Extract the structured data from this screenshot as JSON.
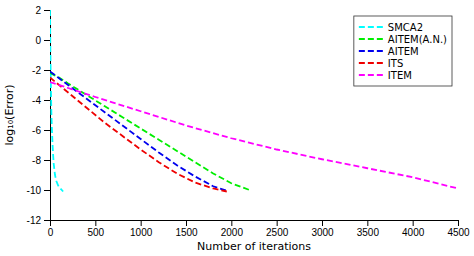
{
  "chart_data": {
    "type": "line",
    "xlabel": "Number of iterations",
    "ylabel": "log₁₀(Error)",
    "xlim": [
      0,
      4500
    ],
    "ylim": [
      -12,
      2
    ],
    "xticks": [
      0,
      500,
      1000,
      1500,
      2000,
      2500,
      3000,
      3500,
      4000,
      4500
    ],
    "yticks": [
      2,
      0,
      -2,
      -4,
      -6,
      -8,
      -10,
      -12
    ],
    "grid": false,
    "legend": "upper right",
    "line_style": "dashed",
    "series": [
      {
        "name": "SMCA2",
        "color": "#00ffff",
        "x": [
          0,
          1,
          2,
          3,
          5,
          7,
          10,
          15,
          20,
          30,
          40,
          55,
          70,
          90,
          115,
          145
        ],
        "values": [
          2.0,
          1.5,
          0.8,
          0.0,
          -1.0,
          -2.0,
          -3.2,
          -4.8,
          -5.8,
          -7.2,
          -8.2,
          -9.0,
          -9.4,
          -9.7,
          -9.9,
          -10.1
        ]
      },
      {
        "name": "AITEM(A.N.)",
        "color": "#00ee00",
        "x": [
          0,
          100,
          200,
          400,
          600,
          800,
          1000,
          1200,
          1400,
          1600,
          1800,
          2000,
          2200
        ],
        "values": [
          -2.2,
          -2.5,
          -2.9,
          -3.65,
          -4.4,
          -5.15,
          -5.9,
          -6.65,
          -7.4,
          -8.15,
          -8.9,
          -9.55,
          -10.0
        ]
      },
      {
        "name": "AITEM",
        "color": "#0000ee",
        "x": [
          0,
          100,
          200,
          400,
          600,
          800,
          1000,
          1200,
          1400,
          1600,
          1800,
          1950
        ],
        "values": [
          -2.1,
          -2.55,
          -3.0,
          -3.9,
          -4.8,
          -5.7,
          -6.6,
          -7.5,
          -8.35,
          -9.1,
          -9.75,
          -10.05
        ]
      },
      {
        "name": "ITS",
        "color": "#ee0000",
        "x": [
          0,
          100,
          200,
          400,
          600,
          800,
          1000,
          1200,
          1400,
          1600,
          1800,
          1950
        ],
        "values": [
          -2.5,
          -3.0,
          -3.5,
          -4.5,
          -5.5,
          -6.4,
          -7.3,
          -8.15,
          -8.9,
          -9.5,
          -9.9,
          -10.1
        ]
      },
      {
        "name": "ITEM",
        "color": "#ff00ff",
        "x": [
          0,
          200,
          500,
          1000,
          1500,
          2000,
          2500,
          3000,
          3500,
          4000,
          4500
        ],
        "values": [
          -2.8,
          -3.2,
          -3.8,
          -4.75,
          -5.7,
          -6.55,
          -7.3,
          -7.95,
          -8.55,
          -9.15,
          -9.9
        ]
      }
    ]
  }
}
